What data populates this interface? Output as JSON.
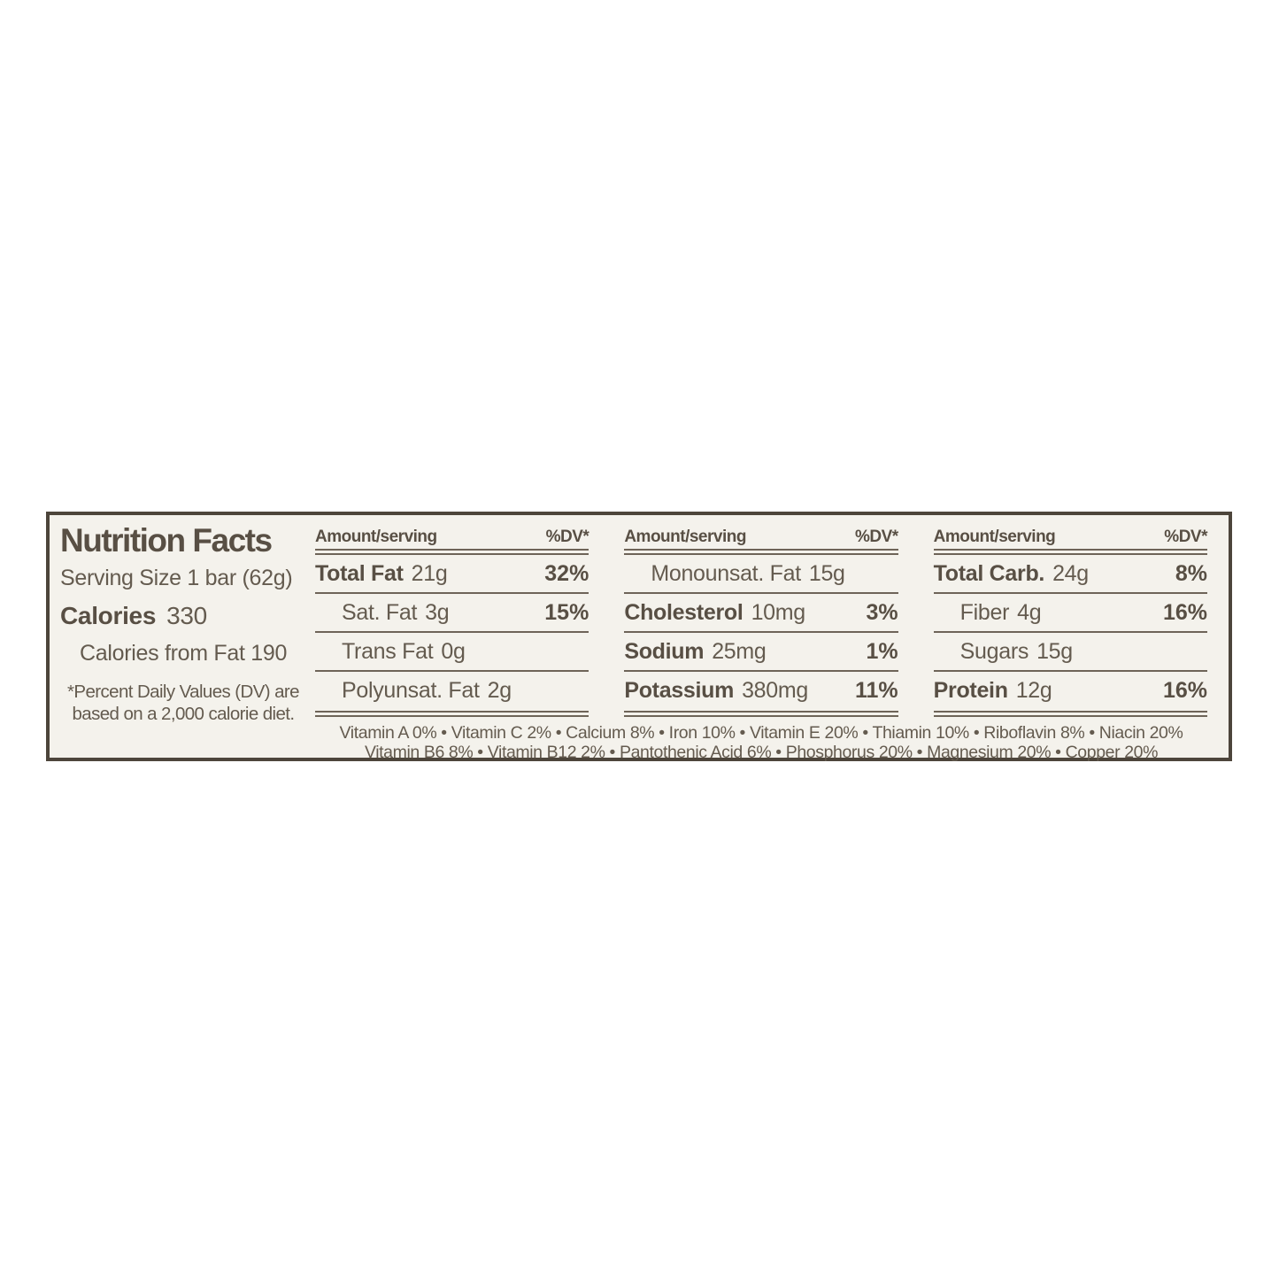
{
  "colors": {
    "label_background": "#f4f2ec",
    "border": "#4d453b",
    "text": "#645b4f",
    "bold_text": "#584f44",
    "rules": "#6e6458",
    "page_background": "#ffffff"
  },
  "label": {
    "title": "Nutrition Facts",
    "serving_size": "Serving Size 1 bar (62g)",
    "calories_label": "Calories",
    "calories_value": "330",
    "calories_from_fat": "Calories from Fat 190",
    "footnote_line1": "*Percent Daily Values (DV) are",
    "footnote_line2": "based on a 2,000 calorie diet.",
    "columns": [
      {
        "header_left": "Amount/serving",
        "header_right": "%DV*",
        "rows": [
          {
            "name": "Total Fat",
            "amount": "21g",
            "dv": "32%"
          },
          {
            "name": "Sat. Fat",
            "amount": "3g",
            "dv": "15%"
          },
          {
            "name": "Trans Fat",
            "amount": "0g",
            "dv": ""
          },
          {
            "name": "Polyunsat. Fat",
            "amount": "2g",
            "dv": ""
          }
        ]
      },
      {
        "header_left": "Amount/serving",
        "header_right": "%DV*",
        "rows": [
          {
            "name": "Monounsat. Fat",
            "amount": "15g",
            "dv": ""
          },
          {
            "name": "Cholesterol",
            "amount": "10mg",
            "dv": "3%"
          },
          {
            "name": "Sodium",
            "amount": "25mg",
            "dv": "1%"
          },
          {
            "name": "Potassium",
            "amount": "380mg",
            "dv": "11%"
          }
        ]
      },
      {
        "header_left": "Amount/serving",
        "header_right": "%DV*",
        "rows": [
          {
            "name": "Total Carb.",
            "amount": "24g",
            "dv": "8%"
          },
          {
            "name": "Fiber",
            "amount": "4g",
            "dv": "16%"
          },
          {
            "name": "Sugars",
            "amount": "15g",
            "dv": ""
          },
          {
            "name": "Protein",
            "amount": "12g",
            "dv": "16%"
          }
        ]
      }
    ],
    "micronutrients_line1": "Vitamin A 0% • Vitamin C 2% • Calcium 8% • Iron 10% • Vitamin E 20% • Thiamin 10% • Riboflavin 8% • Niacin 20%",
    "micronutrients_line2": "Vitamin B6 8% • Vitamin B12 2% • Pantothenic Acid 6% • Phosphorus 20% • Magnesium 20% • Copper 20%"
  }
}
